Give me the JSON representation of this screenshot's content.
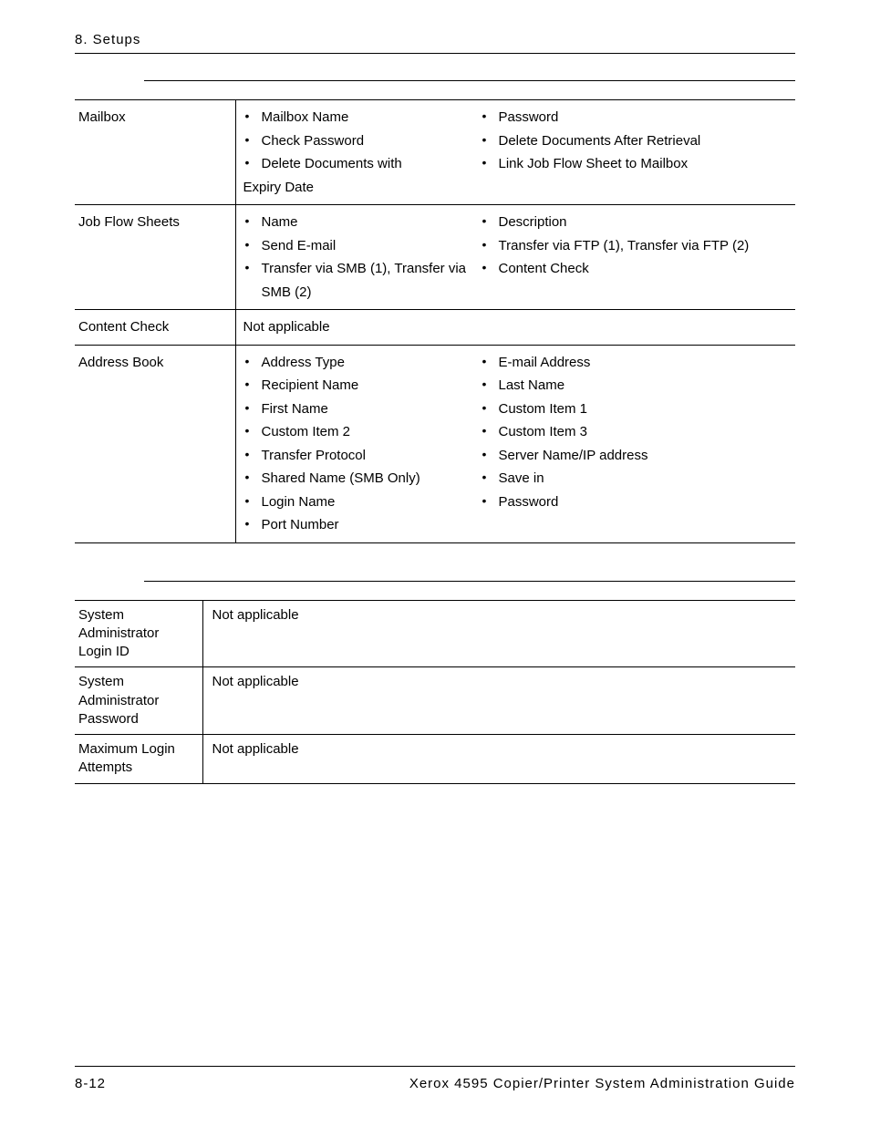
{
  "header": {
    "chapter": "8. Setups"
  },
  "footer": {
    "page": "8-12",
    "title": "Xerox 4595 Copier/Printer System Administration Guide"
  },
  "setup_menu": {
    "rows": [
      {
        "label": "Mailbox",
        "left": [
          {
            "bullet": true,
            "indent": true,
            "text": "Mailbox Name"
          },
          {
            "bullet": true,
            "indent": true,
            "text": "Check Password"
          },
          {
            "bullet": true,
            "indent": true,
            "text": "Delete Documents with"
          },
          {
            "bullet": false,
            "indent": false,
            "text": "Expiry Date"
          }
        ],
        "right": [
          {
            "bullet": true,
            "indent": true,
            "text": "Password"
          },
          {
            "bullet": true,
            "indent": true,
            "text": "Delete Documents After Retrieval"
          },
          {
            "bullet": true,
            "indent": true,
            "text": "Link Job Flow Sheet to Mailbox"
          }
        ]
      },
      {
        "label": "Job Flow Sheets",
        "left": [
          {
            "bullet": true,
            "indent": true,
            "text": "Name"
          },
          {
            "bullet": true,
            "indent": true,
            "text": "Send E-mail"
          },
          {
            "bullet": true,
            "indent": true,
            "text": "Transfer via SMB (1), Transfer via SMB (2)"
          }
        ],
        "right": [
          {
            "bullet": true,
            "indent": true,
            "text": "Description"
          },
          {
            "bullet": true,
            "indent": true,
            "text": "Transfer via FTP (1), Transfer via FTP (2)"
          },
          {
            "bullet": true,
            "indent": true,
            "text": "Content Check"
          }
        ]
      },
      {
        "label": "Content Check",
        "plain": "Not applicable"
      },
      {
        "label": "Address Book",
        "left": [
          {
            "bullet": true,
            "indent": true,
            "text": "Address Type"
          },
          {
            "bullet": true,
            "indent": true,
            "text": "Recipient Name"
          },
          {
            "bullet": true,
            "indent": true,
            "text": "First Name"
          },
          {
            "bullet": true,
            "indent": true,
            "text": "Custom Item 2"
          },
          {
            "bullet": true,
            "indent": true,
            "text": "Transfer Protocol"
          },
          {
            "bullet": true,
            "indent": true,
            "text": "Shared Name (SMB Only)"
          },
          {
            "bullet": true,
            "indent": true,
            "text": "Login Name"
          },
          {
            "bullet": true,
            "indent": true,
            "text": "Port Number"
          }
        ],
        "right": [
          {
            "bullet": true,
            "indent": true,
            "text": "E-mail Address"
          },
          {
            "bullet": true,
            "indent": true,
            "text": "Last Name"
          },
          {
            "bullet": true,
            "indent": true,
            "text": "Custom Item 1"
          },
          {
            "bullet": true,
            "indent": true,
            "text": "Custom Item 3"
          },
          {
            "bullet": true,
            "indent": true,
            "text": "Server Name/IP address"
          },
          {
            "bullet": true,
            "indent": true,
            "text": "Save in"
          },
          {
            "bullet": true,
            "indent": true,
            "text": "Password"
          }
        ]
      }
    ]
  },
  "admin_settings": {
    "rows": [
      {
        "label": "System Administrator Login ID",
        "value": "Not applicable"
      },
      {
        "label": "System Administrator Password",
        "value": "Not applicable"
      },
      {
        "label": "Maximum Login Attempts",
        "value": "Not applicable"
      }
    ]
  }
}
